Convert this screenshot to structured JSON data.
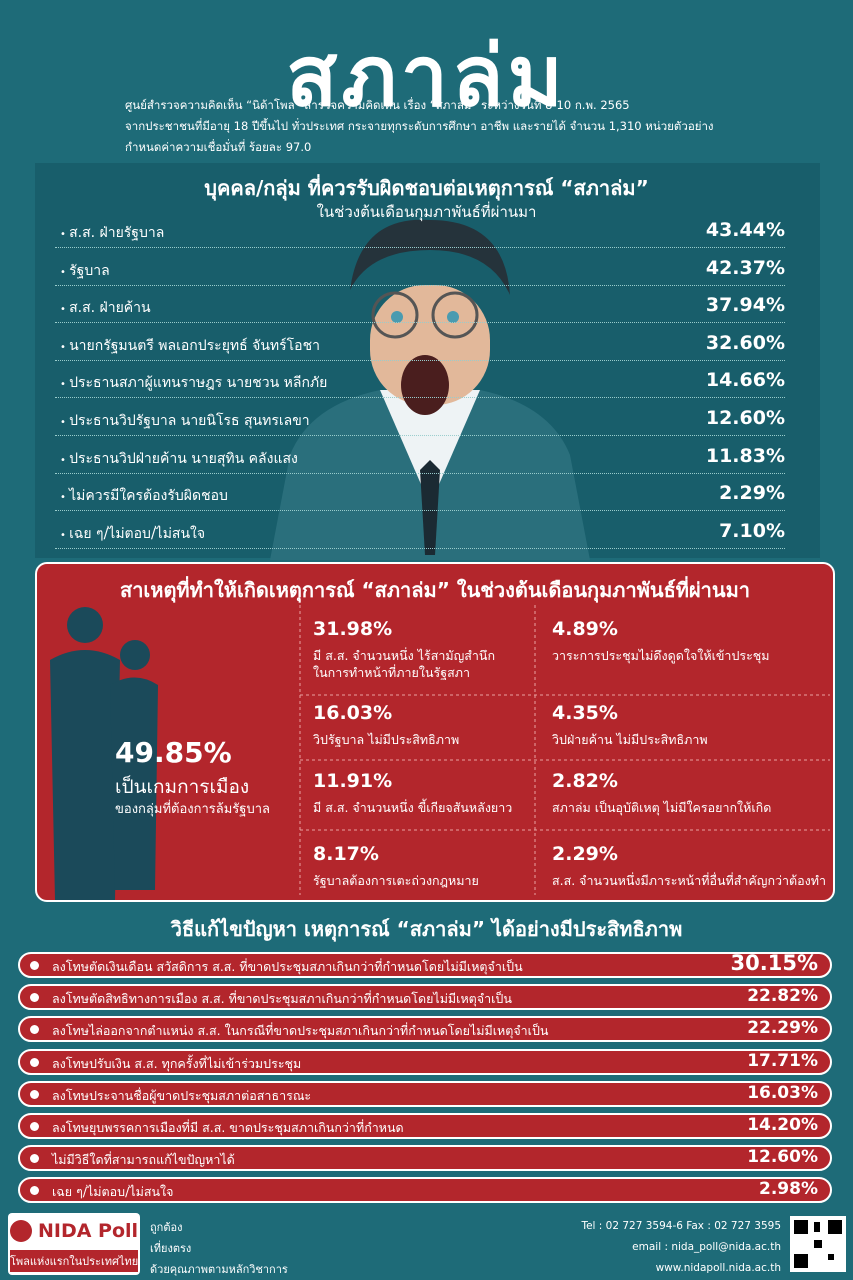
{
  "header": {
    "title": "สภาล่ม",
    "subtitle_lines": [
      "ศูนย์สำรวจความคิดเห็น “นิด้าโพล” สำรวจความคิดเห็น เรื่อง “สภาล่ม” ระหว่างวันที่ 8-10 ก.พ. 2565",
      "จากประชาชนที่มีอายุ 18 ปีขึ้นไป ทั่วประเทศ กระจายทุกระดับการศึกษา อาชีพ และรายได้ จำนวน 1,310 หน่วยตัวอย่าง",
      "กำหนดค่าความเชื่อมั่นที่ ร้อยละ 97.0"
    ]
  },
  "responsibility": {
    "title": "บุคคล/กลุ่ม ที่ควรรับผิดชอบต่อเหตุการณ์ “สภาล่ม”",
    "subtitle": "ในช่วงต้นเดือนกุมภาพันธ์ที่ผ่านมา",
    "items": [
      {
        "label": "ส.ส. ฝ่ายรัฐบาล",
        "value": "43.44%"
      },
      {
        "label": "รัฐบาล",
        "value": "42.37%"
      },
      {
        "label": "ส.ส. ฝ่ายค้าน",
        "value": "37.94%"
      },
      {
        "label": "นายกรัฐมนตรี พลเอกประยุทธ์ จันทร์โอชา",
        "value": "32.60%"
      },
      {
        "label": "ประธานสภาผู้แทนราษฎร นายชวน หลีกภัย",
        "value": "14.66%"
      },
      {
        "label": "ประธานวิปรัฐบาล นายนิโรธ สุนทรเลขา",
        "value": "12.60%"
      },
      {
        "label": "ประธานวิปฝ่ายค้าน นายสุทิน คลังแสง",
        "value": "11.83%"
      },
      {
        "label": "ไม่ควรมีใครต้องรับผิดชอบ",
        "value": "2.29%"
      },
      {
        "label": "เฉย ๆ/ไม่ตอบ/ไม่สนใจ",
        "value": "7.10%"
      }
    ]
  },
  "causes": {
    "title": "สาเหตุที่ทำให้เกิดเหตุการณ์ “สภาล่ม” ในช่วงต้นเดือนกุมภาพันธ์ที่ผ่านมา",
    "main": {
      "value": "49.85%",
      "label": "เป็นเกมการเมือง",
      "sublabel": "ของกลุ่มที่ต้องการล้มรัฐบาล"
    },
    "items": [
      {
        "value": "31.98%",
        "lines": [
          "มี ส.ส. จำนวนหนึ่ง ไร้สามัญสำนึก",
          "ในการทำหน้าที่ภายในรัฐสภา"
        ]
      },
      {
        "value": "4.89%",
        "lines": [
          "วาระการประชุมไม่ดึงดูดใจให้เข้าประชุม"
        ]
      },
      {
        "value": "16.03%",
        "lines": [
          "วิปรัฐบาล ไม่มีประสิทธิภาพ"
        ]
      },
      {
        "value": "4.35%",
        "lines": [
          "วิปฝ่ายค้าน ไม่มีประสิทธิภาพ"
        ]
      },
      {
        "value": "11.91%",
        "lines": [
          "มี ส.ส. จำนวนหนึ่ง ขี้เกียจสันหลังยาว"
        ]
      },
      {
        "value": "2.82%",
        "lines": [
          "สภาล่ม เป็นอุบัติเหตุ ไม่มีใครอยากให้เกิด"
        ]
      },
      {
        "value": "8.17%",
        "lines": [
          "รัฐบาลต้องการเตะถ่วงกฎหมาย"
        ]
      },
      {
        "value": "2.29%",
        "lines": [
          "ส.ส. จำนวนหนึ่งมีภาระหน้าที่อื่นที่สำคัญกว่าต้องทำ"
        ]
      }
    ]
  },
  "solutions": {
    "title": "วิธีแก้ไขปัญหา เหตุการณ์ “สภาล่ม” ได้อย่างมีประสิทธิภาพ",
    "items": [
      {
        "label": "ลงโทษตัดเงินเดือน สวัสดิการ ส.ส. ที่ขาดประชุมสภาเกินกว่าที่กำหนดโดยไม่มีเหตุจำเป็น",
        "value": "30.15%"
      },
      {
        "label": "ลงโทษตัดสิทธิทางการเมือง ส.ส. ที่ขาดประชุมสภาเกินกว่าที่กำหนดโดยไม่มีเหตุจำเป็น",
        "value": "22.82%"
      },
      {
        "label": "ลงโทษไล่ออกจากตำแหน่ง ส.ส. ในกรณีที่ขาดประชุมสภาเกินกว่าที่กำหนดโดยไม่มีเหตุจำเป็น",
        "value": "22.29%"
      },
      {
        "label": "ลงโทษปรับเงิน ส.ส. ทุกครั้งที่ไม่เข้าร่วมประชุม",
        "value": "17.71%"
      },
      {
        "label": "ลงโทษประจานชื่อผู้ขาดประชุมสภาต่อสาธารณะ",
        "value": "16.03%"
      },
      {
        "label": "ลงโทษยุบพรรคการเมืองที่มี ส.ส. ขาดประชุมสภาเกินกว่าที่กำหนด",
        "value": "14.20%"
      },
      {
        "label": "ไม่มีวิธีใดที่สามารถแก้ไขปัญหาได้",
        "value": "12.60%"
      },
      {
        "label": "เฉย ๆ/ไม่ตอบ/ไม่สนใจ",
        "value": "2.98%"
      }
    ]
  },
  "footer": {
    "logo": "NIDA Poll",
    "logo_tagline": "โพลแห่งแรกในประเทศไทย",
    "motto_lines": [
      "ถูกต้อง",
      "เที่ยงตรง",
      "ด้วยคุณภาพตามหลักวิชาการ"
    ],
    "contact_lines": [
      "Tel : 02 727 3594-6 Fax : 02 727 3595",
      "email : nida_poll@nida.ac.th",
      "www.nidapoll.nida.ac.th"
    ]
  }
}
